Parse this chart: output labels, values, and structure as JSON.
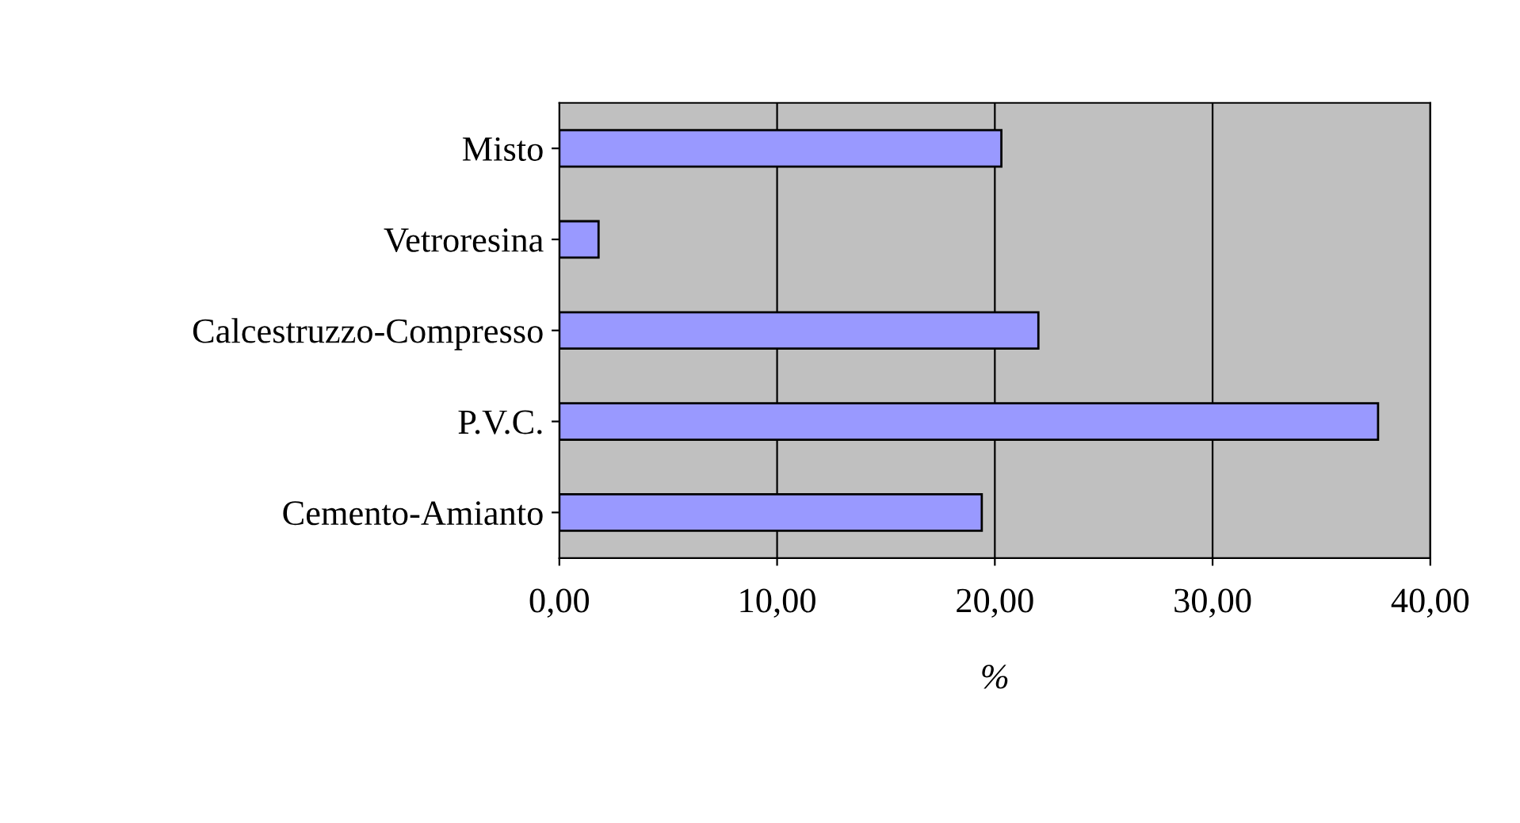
{
  "chart_data": {
    "type": "bar",
    "orientation": "horizontal",
    "xlabel": "%",
    "categories": [
      "Misto",
      "Vetroresina",
      "Calcestruzzo-Compresso",
      "P.V.C.",
      "Cemento-Amianto"
    ],
    "values": [
      20.3,
      1.8,
      22.0,
      37.6,
      19.4
    ],
    "color": "#9999ff",
    "xlim": [
      0,
      40
    ],
    "xticks": [
      {
        "value": 0,
        "label": "0,00"
      },
      {
        "value": 10,
        "label": "10,00"
      },
      {
        "value": 20,
        "label": "20,00"
      },
      {
        "value": 30,
        "label": "30,00"
      },
      {
        "value": 40,
        "label": "40,00"
      }
    ],
    "grid": "x",
    "legend": false
  }
}
